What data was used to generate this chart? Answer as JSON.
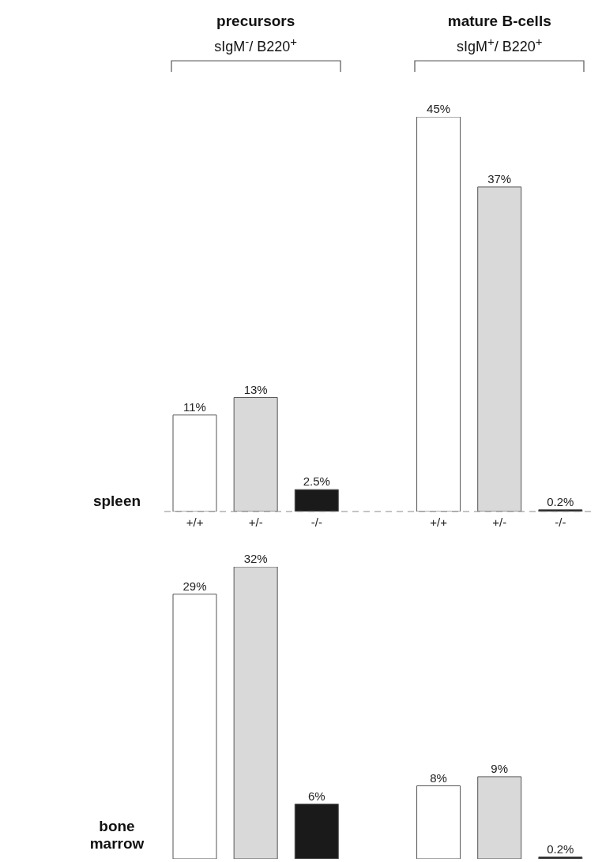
{
  "chart_data": [
    {
      "type": "bar",
      "ylabel": "spleen",
      "annotations": [
        "precursors",
        "sIgM$^{-}$/ B220$^{+}$",
        "mature B-cells",
        "sIgM$^{+}$/ B220$^{+}$"
      ],
      "categories": [
        "+/+",
        "+/-",
        "-/-",
        null,
        "+/+",
        "+/-",
        "-/-"
      ],
      "values": [
        11,
        13,
        2.5,
        null,
        45,
        37,
        0.2
      ],
      "value_labels": [
        "11%",
        "13%",
        "2.5%",
        null,
        "45%",
        "37%",
        "0.2%"
      ],
      "colors": [
        "#ffffff",
        "#d9d9d9",
        "#1a1a1a",
        "#ffffff",
        "#ffffff",
        "#d9d9d9",
        "#1a1a1a"
      ],
      "ref_lines": [
        {
          "axis": "y",
          "value": 0,
          "line_style": "dashed"
        }
      ],
      "grid": false,
      "legend": false
    },
    {
      "type": "bar",
      "ylabel": "bone marrow",
      "categories": [
        null,
        null,
        null,
        null,
        null,
        null,
        null
      ],
      "values": [
        29,
        32,
        6,
        null,
        8,
        9,
        0.2
      ],
      "value_labels": [
        "29%",
        "32%",
        "6%",
        null,
        "8%",
        "9%",
        "0.2%"
      ],
      "colors": [
        "#ffffff",
        "#d9d9d9",
        "#1a1a1a",
        "#ffffff",
        "#ffffff",
        "#d9d9d9",
        "#1a1a1a"
      ],
      "tick_labels": false,
      "grid": false,
      "legend": false
    }
  ]
}
